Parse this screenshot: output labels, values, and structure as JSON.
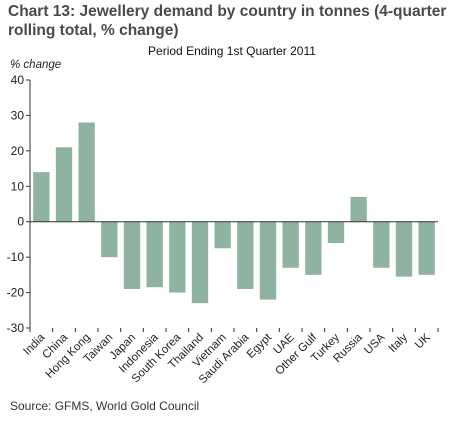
{
  "chart_data": {
    "type": "bar",
    "title": "Chart 13: Jewellery demand by country in tonnes (4-quarter rolling total, % change)",
    "subtitle": "Period Ending 1st Quarter 2011",
    "xlabel": "",
    "ylabel": "% change",
    "ylim": [
      -30,
      40
    ],
    "yticks": [
      -30,
      -20,
      -10,
      0,
      10,
      20,
      30,
      40
    ],
    "grid": false,
    "bar_color": "#8fb3a1",
    "categories": [
      "India",
      "China",
      "Hong Kong",
      "Taiwan",
      "Japan",
      "Indonesia",
      "South Korea",
      "Thailand",
      "Vietnam",
      "Saudi Arabia",
      "Egypt",
      "UAE",
      "Other Gulf",
      "Turkey",
      "Russia",
      "USA",
      "Italy",
      "UK"
    ],
    "values": [
      14,
      21,
      28,
      -10,
      -19,
      -18.5,
      -20,
      -23,
      -7.5,
      -19,
      -22,
      -13,
      -15,
      -6,
      7,
      -13,
      -15.5,
      -15
    ]
  },
  "source": "Source: GFMS, World Gold Council"
}
